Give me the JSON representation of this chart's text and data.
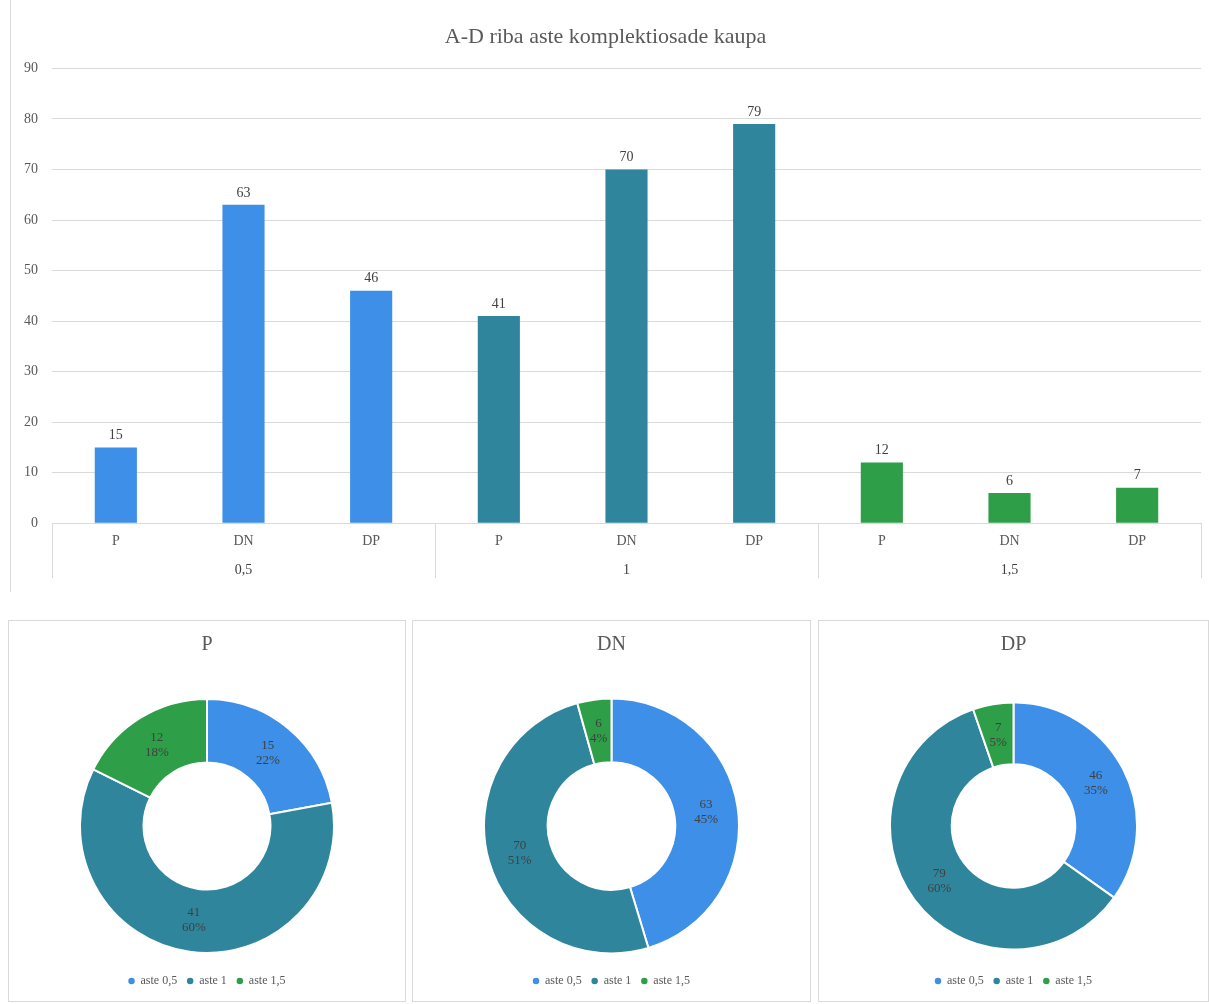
{
  "chart_data": [
    {
      "type": "bar",
      "title": "A-D riba aste komplektiosade kaupa",
      "categories": [
        "P",
        "DN",
        "DP",
        "P",
        "DN",
        "DP",
        "P",
        "DN",
        "DP"
      ],
      "values": [
        15,
        63,
        46,
        41,
        70,
        79,
        12,
        6,
        7
      ],
      "colors": [
        "#3d8fe8",
        "#3d8fe8",
        "#3d8fe8",
        "#2f869c",
        "#2f869c",
        "#2f869c",
        "#2e9e48",
        "#2e9e48",
        "#2e9e48"
      ],
      "ylim": [
        0,
        90
      ],
      "yticks": [
        0,
        10,
        20,
        30,
        40,
        50,
        60,
        70,
        80,
        90
      ],
      "grid": "y",
      "data_labels": true,
      "annotations": [
        "0,5",
        "1",
        "1,5"
      ]
    },
    {
      "type": "donut",
      "title": "P",
      "categories": [
        "aste 0,5",
        "aste 1",
        "aste 1,5"
      ],
      "values": [
        15,
        41,
        12
      ],
      "colors": [
        "#3d8fe8",
        "#2f869c",
        "#2e9e48"
      ],
      "value_labels": [
        "15\n22%",
        "41\n60%",
        "12\n18%"
      ],
      "legend": "bottom"
    },
    {
      "type": "donut",
      "title": "DN",
      "categories": [
        "aste 0,5",
        "aste 1",
        "aste 1,5"
      ],
      "values": [
        63,
        70,
        6
      ],
      "colors": [
        "#3d8fe8",
        "#2f869c",
        "#2e9e48"
      ],
      "value_labels": [
        "63\n45%",
        "70\n51%",
        "6\n4%"
      ],
      "legend": "bottom"
    },
    {
      "type": "donut",
      "title": "DP",
      "categories": [
        "aste 0,5",
        "aste 1",
        "aste 1,5"
      ],
      "values": [
        46,
        79,
        7
      ],
      "colors": [
        "#3d8fe8",
        "#2f869c",
        "#2e9e48"
      ],
      "value_labels": [
        "46\n35%",
        "79\n60%",
        "7\n5%"
      ],
      "legend": "bottom"
    }
  ]
}
